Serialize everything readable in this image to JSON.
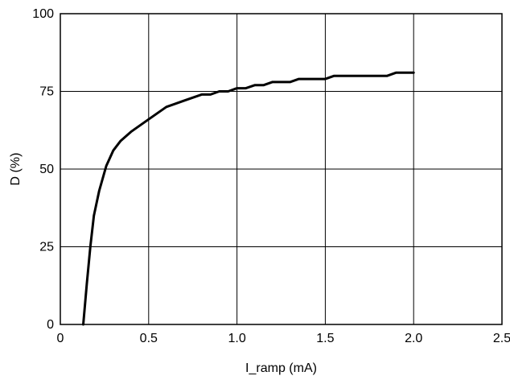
{
  "chart_data": {
    "type": "line",
    "title": "",
    "xlabel": "I_ramp (mA)",
    "ylabel": "D (%)",
    "xlim": [
      0,
      2.5
    ],
    "ylim": [
      0,
      100
    ],
    "xticks": [
      0,
      0.5,
      1.0,
      1.5,
      2.0,
      2.5
    ],
    "xtick_labels": [
      "0",
      "0.5",
      "1.0",
      "1.5",
      "2.0",
      "2.5"
    ],
    "yticks": [
      0,
      25,
      50,
      75,
      100
    ],
    "ytick_labels": [
      "0",
      "25",
      "50",
      "75",
      "100"
    ],
    "grid": true,
    "legend": "none",
    "series": [
      {
        "color": "#000000",
        "x": [
          0.13,
          0.15,
          0.17,
          0.19,
          0.22,
          0.26,
          0.3,
          0.34,
          0.4,
          0.5,
          0.6,
          0.7,
          0.8,
          0.85,
          0.9,
          0.95,
          1.0,
          1.05,
          1.1,
          1.15,
          1.2,
          1.3,
          1.35,
          1.4,
          1.5,
          1.55,
          1.6,
          1.7,
          1.8,
          1.85,
          1.9,
          2.0
        ],
        "y": [
          0,
          13,
          25,
          35,
          43,
          51,
          56,
          59,
          62,
          66,
          70,
          72,
          74,
          74,
          75,
          75,
          76,
          76,
          77,
          77,
          78,
          78,
          79,
          79,
          79,
          80,
          80,
          80,
          80,
          80,
          81,
          81
        ]
      }
    ]
  }
}
